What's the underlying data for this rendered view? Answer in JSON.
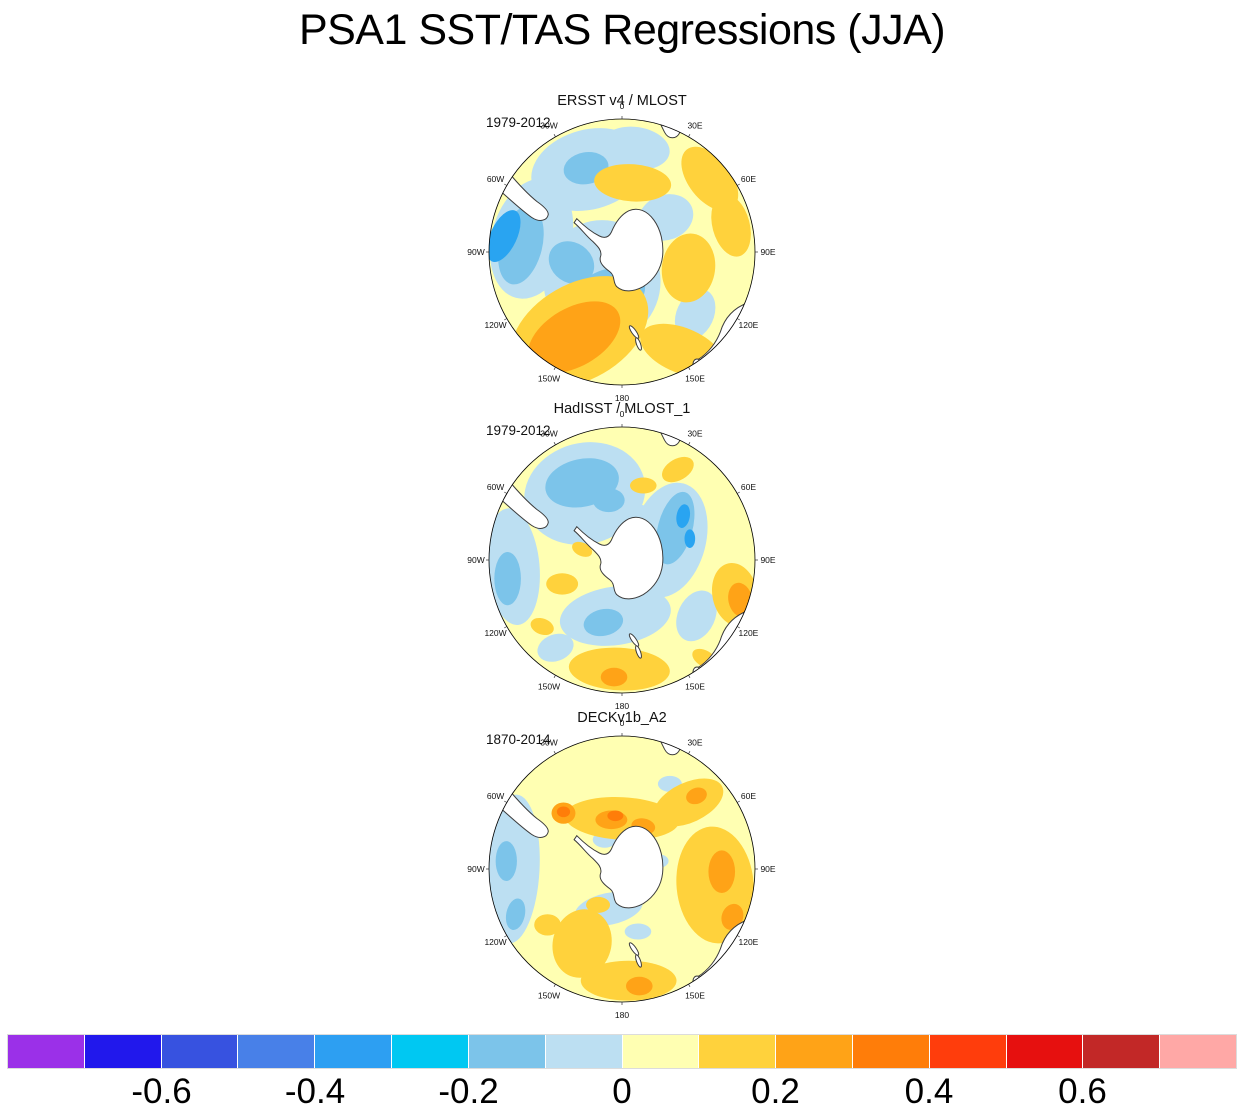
{
  "chart_data": {
    "type": "heatmap",
    "title": "PSA1 SST/TAS Regressions (JJA)",
    "projection": "south-polar-stereographic",
    "lon_labels": [
      "0",
      "30E",
      "60E",
      "90E",
      "120E",
      "150E",
      "180",
      "150W",
      "120W",
      "90W",
      "60W",
      "30W"
    ],
    "palette": {
      "pale_yellow": "#FFFFB2",
      "light_blue": "#BCDFF2",
      "sky_blue": "#7CC4EA",
      "bright_blue": "#29A4F1",
      "gold": "#FFD23C",
      "orange": "#FFA317",
      "dark_orange": "#FF7D09"
    },
    "panels": [
      {
        "title": "ERSST v4 / MLOST",
        "period": "1979-2012",
        "features": [
          {
            "c": "light_blue",
            "x": -0.25,
            "y": -0.62,
            "rx": 0.44,
            "ry": 0.3,
            "rot": -15
          },
          {
            "c": "light_blue",
            "x": 0.1,
            "y": -0.78,
            "rx": 0.26,
            "ry": 0.16,
            "rot": 8
          },
          {
            "c": "light_blue",
            "x": -0.68,
            "y": -0.1,
            "rx": 0.3,
            "ry": 0.46,
            "rot": 15
          },
          {
            "c": "light_blue",
            "x": -0.15,
            "y": 0.22,
            "rx": 0.44,
            "ry": 0.46,
            "rot": 0
          },
          {
            "c": "light_blue",
            "x": 0.33,
            "y": -0.26,
            "rx": 0.21,
            "ry": 0.17,
            "rot": -20
          },
          {
            "c": "light_blue",
            "x": 0.55,
            "y": 0.47,
            "rx": 0.14,
            "ry": 0.2,
            "rot": 25
          },
          {
            "c": "sky_blue",
            "x": -0.27,
            "y": -0.63,
            "rx": 0.17,
            "ry": 0.12,
            "rot": -10
          },
          {
            "c": "sky_blue",
            "x": -0.76,
            "y": -0.05,
            "rx": 0.16,
            "ry": 0.3,
            "rot": 14
          },
          {
            "c": "sky_blue",
            "x": -0.12,
            "y": 0.34,
            "rx": 0.31,
            "ry": 0.2,
            "rot": -25
          },
          {
            "c": "sky_blue",
            "x": -0.38,
            "y": 0.08,
            "rx": 0.18,
            "ry": 0.15,
            "rot": 35
          },
          {
            "c": "bright_blue",
            "x": -0.89,
            "y": -0.12,
            "rx": 0.1,
            "ry": 0.21,
            "rot": 25
          },
          {
            "c": "gold",
            "x": 0.08,
            "y": -0.52,
            "rx": 0.29,
            "ry": 0.14,
            "rot": 4
          },
          {
            "c": "gold",
            "x": 0.66,
            "y": -0.55,
            "rx": 0.16,
            "ry": 0.28,
            "rot": -38
          },
          {
            "c": "gold",
            "x": 0.82,
            "y": -0.2,
            "rx": 0.14,
            "ry": 0.24,
            "rot": -15
          },
          {
            "c": "gold",
            "x": 0.5,
            "y": 0.12,
            "rx": 0.2,
            "ry": 0.26,
            "rot": 8
          },
          {
            "c": "gold",
            "x": -0.32,
            "y": 0.6,
            "rx": 0.56,
            "ry": 0.36,
            "rot": -30
          },
          {
            "c": "gold",
            "x": 0.45,
            "y": 0.74,
            "rx": 0.33,
            "ry": 0.17,
            "rot": 22
          },
          {
            "c": "orange",
            "x": -0.36,
            "y": 0.64,
            "rx": 0.38,
            "ry": 0.22,
            "rot": -30
          }
        ]
      },
      {
        "title": "HadISST / MLOST_1",
        "period": "1979-2012",
        "features": [
          {
            "c": "light_blue",
            "x": -0.28,
            "y": -0.5,
            "rx": 0.46,
            "ry": 0.38,
            "rot": -15
          },
          {
            "c": "sky_blue",
            "x": -0.3,
            "y": -0.58,
            "rx": 0.28,
            "ry": 0.18,
            "rot": -12
          },
          {
            "c": "sky_blue",
            "x": -0.1,
            "y": -0.45,
            "rx": 0.12,
            "ry": 0.09,
            "rot": 0
          },
          {
            "c": "light_blue",
            "x": -0.82,
            "y": 0.05,
            "rx": 0.2,
            "ry": 0.44,
            "rot": -5
          },
          {
            "c": "sky_blue",
            "x": -0.86,
            "y": 0.14,
            "rx": 0.1,
            "ry": 0.2,
            "rot": 0
          },
          {
            "c": "light_blue",
            "x": 0.35,
            "y": -0.15,
            "rx": 0.28,
            "ry": 0.44,
            "rot": 15
          },
          {
            "c": "light_blue",
            "x": 0.1,
            "y": -0.28,
            "rx": 0.18,
            "ry": 0.14,
            "rot": 0
          },
          {
            "c": "sky_blue",
            "x": 0.4,
            "y": -0.24,
            "rx": 0.13,
            "ry": 0.28,
            "rot": 15
          },
          {
            "c": "bright_blue",
            "x": 0.46,
            "y": -0.33,
            "rx": 0.05,
            "ry": 0.09,
            "rot": 10
          },
          {
            "c": "bright_blue",
            "x": 0.51,
            "y": -0.16,
            "rx": 0.04,
            "ry": 0.07,
            "rot": 0
          },
          {
            "c": "light_blue",
            "x": -0.05,
            "y": 0.42,
            "rx": 0.42,
            "ry": 0.22,
            "rot": -8
          },
          {
            "c": "sky_blue",
            "x": -0.14,
            "y": 0.47,
            "rx": 0.15,
            "ry": 0.1,
            "rot": -12
          },
          {
            "c": "light_blue",
            "x": 0.56,
            "y": 0.42,
            "rx": 0.14,
            "ry": 0.2,
            "rot": 25
          },
          {
            "c": "light_blue",
            "x": -0.5,
            "y": 0.66,
            "rx": 0.14,
            "ry": 0.1,
            "rot": -20
          },
          {
            "c": "gold",
            "x": 0.42,
            "y": -0.68,
            "rx": 0.13,
            "ry": 0.08,
            "rot": -30
          },
          {
            "c": "gold",
            "x": 0.85,
            "y": 0.26,
            "rx": 0.17,
            "ry": 0.24,
            "rot": -12
          },
          {
            "c": "orange",
            "x": 0.89,
            "y": 0.3,
            "rx": 0.09,
            "ry": 0.13,
            "rot": -12
          },
          {
            "c": "gold",
            "x": -0.02,
            "y": 0.82,
            "rx": 0.38,
            "ry": 0.16,
            "rot": 3
          },
          {
            "c": "orange",
            "x": -0.06,
            "y": 0.88,
            "rx": 0.1,
            "ry": 0.07,
            "rot": 0
          },
          {
            "c": "gold",
            "x": -0.45,
            "y": 0.18,
            "rx": 0.12,
            "ry": 0.08,
            "rot": 0
          },
          {
            "c": "gold",
            "x": -0.3,
            "y": -0.08,
            "rx": 0.08,
            "ry": 0.05,
            "rot": 25
          },
          {
            "c": "gold",
            "x": 0.16,
            "y": -0.56,
            "rx": 0.1,
            "ry": 0.06,
            "rot": 0
          },
          {
            "c": "gold",
            "x": -0.6,
            "y": 0.5,
            "rx": 0.09,
            "ry": 0.06,
            "rot": 20
          },
          {
            "c": "gold",
            "x": 0.62,
            "y": 0.74,
            "rx": 0.1,
            "ry": 0.06,
            "rot": 30
          }
        ]
      },
      {
        "title": "DECKv1b_A2",
        "period": "1870-2014",
        "features": [
          {
            "c": "light_blue",
            "x": -0.82,
            "y": 0.0,
            "rx": 0.2,
            "ry": 0.56,
            "rot": 3
          },
          {
            "c": "sky_blue",
            "x": -0.87,
            "y": -0.06,
            "rx": 0.08,
            "ry": 0.15,
            "rot": 0
          },
          {
            "c": "sky_blue",
            "x": -0.8,
            "y": 0.34,
            "rx": 0.07,
            "ry": 0.12,
            "rot": 12
          },
          {
            "c": "light_blue",
            "x": -0.1,
            "y": 0.3,
            "rx": 0.26,
            "ry": 0.12,
            "rot": -12
          },
          {
            "c": "light_blue",
            "x": 0.14,
            "y": 0.13,
            "rx": 0.08,
            "ry": 0.05,
            "rot": 0
          },
          {
            "c": "light_blue",
            "x": 0.28,
            "y": -0.06,
            "rx": 0.07,
            "ry": 0.05,
            "rot": 0
          },
          {
            "c": "light_blue",
            "x": -0.13,
            "y": -0.22,
            "rx": 0.09,
            "ry": 0.06,
            "rot": 0
          },
          {
            "c": "light_blue",
            "x": 0.36,
            "y": -0.64,
            "rx": 0.09,
            "ry": 0.06,
            "rot": 0
          },
          {
            "c": "light_blue",
            "x": 0.12,
            "y": 0.47,
            "rx": 0.1,
            "ry": 0.06,
            "rot": 0
          },
          {
            "c": "gold",
            "x": 0.0,
            "y": -0.38,
            "rx": 0.43,
            "ry": 0.16,
            "rot": 3
          },
          {
            "c": "orange",
            "x": -0.08,
            "y": -0.37,
            "rx": 0.12,
            "ry": 0.07,
            "rot": 0
          },
          {
            "c": "dark_orange",
            "x": -0.05,
            "y": -0.4,
            "rx": 0.06,
            "ry": 0.04,
            "rot": 0
          },
          {
            "c": "orange",
            "x": 0.16,
            "y": -0.32,
            "rx": 0.09,
            "ry": 0.06,
            "rot": 10
          },
          {
            "c": "orange",
            "x": -0.44,
            "y": -0.42,
            "rx": 0.09,
            "ry": 0.08,
            "rot": 0
          },
          {
            "c": "dark_orange",
            "x": -0.44,
            "y": -0.43,
            "rx": 0.05,
            "ry": 0.04,
            "rot": 0
          },
          {
            "c": "gold",
            "x": 0.5,
            "y": -0.5,
            "rx": 0.28,
            "ry": 0.15,
            "rot": -25
          },
          {
            "c": "orange",
            "x": 0.56,
            "y": -0.55,
            "rx": 0.08,
            "ry": 0.06,
            "rot": -20
          },
          {
            "c": "gold",
            "x": 0.7,
            "y": 0.12,
            "rx": 0.29,
            "ry": 0.44,
            "rot": -5
          },
          {
            "c": "orange",
            "x": 0.75,
            "y": 0.02,
            "rx": 0.1,
            "ry": 0.16,
            "rot": 0
          },
          {
            "c": "orange",
            "x": 0.83,
            "y": 0.36,
            "rx": 0.08,
            "ry": 0.1,
            "rot": 20
          },
          {
            "c": "gold",
            "x": -0.3,
            "y": 0.56,
            "rx": 0.22,
            "ry": 0.26,
            "rot": 15
          },
          {
            "c": "gold",
            "x": 0.05,
            "y": 0.84,
            "rx": 0.36,
            "ry": 0.15,
            "rot": 0
          },
          {
            "c": "orange",
            "x": 0.13,
            "y": 0.88,
            "rx": 0.1,
            "ry": 0.07,
            "rot": 0
          },
          {
            "c": "gold",
            "x": -0.56,
            "y": 0.42,
            "rx": 0.1,
            "ry": 0.08,
            "rot": 0
          },
          {
            "c": "gold",
            "x": -0.18,
            "y": 0.27,
            "rx": 0.09,
            "ry": 0.06,
            "rot": 0
          }
        ]
      }
    ],
    "colorbar": {
      "tick_labels": [
        "-0.6",
        "-0.4",
        "-0.2",
        "0",
        "0.2",
        "0.4",
        "0.6"
      ],
      "min_level": -0.7,
      "max_level": 0.7,
      "interval": 0.1,
      "colors": [
        "#9B30E8",
        "#2118EC",
        "#3752E0",
        "#4880E8",
        "#2D9FF2",
        "#00C8F2",
        "#7CC4EA",
        "#BCDFF2",
        "#FFFFB2",
        "#FFD23C",
        "#FFA317",
        "#FF7D09",
        "#FF3D0C",
        "#E6100F",
        "#C22827",
        "#FFA8A6"
      ]
    }
  }
}
